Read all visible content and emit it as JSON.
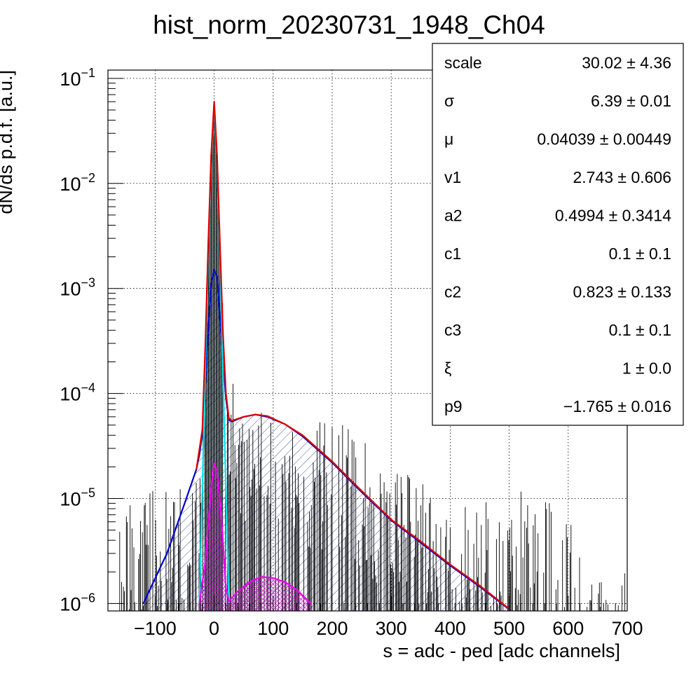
{
  "chart_data": {
    "type": "histogram",
    "title": "hist_norm_20230731_1948_Ch04",
    "xlabel": "s = adc - ped [adc channels]",
    "ylabel": "dN/ds p.d.f. [a.u.]",
    "xlim": [
      -180,
      700
    ],
    "ylim": [
      8.5e-07,
      0.12
    ],
    "yscale": "log",
    "grid": true,
    "x_ticks": [
      {
        "value": -100,
        "label": "−100"
      },
      {
        "value": 0,
        "label": "0"
      },
      {
        "value": 100,
        "label": "100"
      },
      {
        "value": 200,
        "label": "200"
      },
      {
        "value": 300,
        "label": "300"
      },
      {
        "value": 400,
        "label": "400"
      },
      {
        "value": 500,
        "label": "500"
      },
      {
        "value": 600,
        "label": "600"
      },
      {
        "value": 700,
        "label": "700"
      }
    ],
    "y_ticks": [
      {
        "value": 1e-06,
        "base": "10",
        "exp": "−6"
      },
      {
        "value": 1e-05,
        "base": "10",
        "exp": "−5"
      },
      {
        "value": 0.0001,
        "base": "10",
        "exp": "−4"
      },
      {
        "value": 0.001,
        "base": "10",
        "exp": "−3"
      },
      {
        "value": 0.01,
        "base": "10",
        "exp": "−2"
      },
      {
        "value": 0.1,
        "base": "10",
        "exp": "−1"
      }
    ],
    "stats_box": {
      "placement": "top-right",
      "rows": [
        {
          "name": "scale",
          "value": "30.02 ± 4.36"
        },
        {
          "name": "σ",
          "value": "6.39 ± 0.01"
        },
        {
          "name": "μ",
          "value": "0.04039 ± 0.00449"
        },
        {
          "name": "v1",
          "value": "2.743 ± 0.606"
        },
        {
          "name": "a2",
          "value": "0.4994 ± 0.3414"
        },
        {
          "name": "c1",
          "value": "0.1 ± 0.1"
        },
        {
          "name": "c2",
          "value": "0.823 ± 0.133"
        },
        {
          "name": "c3",
          "value": "0.1 ± 0.1"
        },
        {
          "name": "ξ",
          "value": "1 ± 0.0"
        },
        {
          "name": "p9",
          "value": "−1.765 ± 0.016"
        }
      ]
    },
    "series": [
      {
        "type": "curve",
        "color": "#0000cc",
        "fill": "hatched",
        "points": [
          [
            -120,
            1e-06
          ],
          [
            -80,
            3e-06
          ],
          [
            -50,
            9e-06
          ],
          [
            -30,
            1.9e-05
          ],
          [
            -25,
            2.6e-05
          ],
          [
            -20,
            4.2e-05
          ],
          [
            -15,
            0.00012
          ],
          [
            -10,
            0.0004
          ],
          [
            -5,
            0.0011
          ],
          [
            0,
            0.0015
          ],
          [
            5,
            0.0013
          ],
          [
            10,
            0.0005
          ],
          [
            15,
            0.00022
          ],
          [
            20,
            9e-05
          ],
          [
            25,
            5.6e-05
          ],
          [
            30,
            5.4e-05
          ],
          [
            50,
            6e-05
          ],
          [
            70,
            6.3e-05
          ],
          [
            90,
            6e-05
          ],
          [
            120,
            5.1e-05
          ],
          [
            150,
            3.9e-05
          ],
          [
            200,
            2.2e-05
          ],
          [
            250,
            1.15e-05
          ],
          [
            300,
            6.2e-06
          ],
          [
            350,
            3.8e-06
          ],
          [
            400,
            2.3e-06
          ],
          [
            450,
            1.45e-06
          ],
          [
            500,
            8.8e-07
          ]
        ]
      },
      {
        "type": "curve",
        "color": "#00e5ee",
        "fill": "hatched",
        "points": [
          [
            -25,
            1e-06
          ],
          [
            -20,
            1.2e-05
          ],
          [
            -15,
            0.00016
          ],
          [
            -10,
            0.0022
          ],
          [
            -5,
            0.018
          ],
          [
            0,
            0.054
          ],
          [
            5,
            0.017
          ],
          [
            10,
            0.002
          ],
          [
            15,
            0.00015
          ],
          [
            20,
            1.2e-05
          ],
          [
            25,
            1e-06
          ]
        ]
      },
      {
        "type": "curve",
        "color": "#ee00ee",
        "fill": "crosshatched",
        "points": [
          [
            -25,
            1e-06
          ],
          [
            -15,
            2.5e-06
          ],
          [
            -5,
            1.3e-05
          ],
          [
            0,
            2.2e-05
          ],
          [
            5,
            1.8e-05
          ],
          [
            12,
            7e-06
          ],
          [
            20,
            1.4e-06
          ],
          [
            25,
            1.05e-06
          ],
          [
            40,
            1.3e-06
          ],
          [
            60,
            1.6e-06
          ],
          [
            80,
            1.8e-06
          ],
          [
            100,
            1.75e-06
          ],
          [
            120,
            1.6e-06
          ],
          [
            140,
            1.35e-06
          ],
          [
            160,
            1.05e-06
          ],
          [
            165,
            1e-06
          ]
        ]
      },
      {
        "type": "curve",
        "color": "#dd0000",
        "points": [
          [
            -30,
            1.9e-05
          ],
          [
            -20,
            4.5e-05
          ],
          [
            -15,
            0.00028
          ],
          [
            -10,
            0.0026
          ],
          [
            -5,
            0.019
          ],
          [
            0,
            0.06
          ],
          [
            5,
            0.018
          ],
          [
            10,
            0.0025
          ],
          [
            15,
            0.00037
          ],
          [
            20,
            0.0001
          ],
          [
            25,
            5.8e-05
          ],
          [
            30,
            5.5e-05
          ],
          [
            50,
            6e-05
          ],
          [
            70,
            6.3e-05
          ],
          [
            90,
            6.1e-05
          ],
          [
            120,
            5.1e-05
          ],
          [
            150,
            4e-05
          ],
          [
            200,
            2.25e-05
          ],
          [
            250,
            1.18e-05
          ],
          [
            300,
            6.3e-06
          ],
          [
            350,
            3.9e-06
          ],
          [
            400,
            2.35e-06
          ],
          [
            450,
            1.48e-06
          ],
          [
            500,
            8.9e-07
          ]
        ]
      },
      {
        "type": "histogram",
        "color": "#000000",
        "binned_envelope": [
          [
            -160,
            1.2e-05
          ],
          [
            -100,
            1.2e-05
          ],
          [
            -60,
            1.2e-05
          ],
          [
            -40,
            1.8e-05
          ],
          [
            -30,
            3e-05
          ],
          [
            -25,
            6e-05
          ],
          [
            -20,
            0.00016
          ],
          [
            -15,
            0.0005
          ],
          [
            -10,
            0.003
          ],
          [
            -5,
            0.02
          ],
          [
            0,
            0.06
          ],
          [
            5,
            0.02
          ],
          [
            10,
            0.003
          ],
          [
            15,
            0.0006
          ],
          [
            20,
            0.00025
          ],
          [
            25,
            0.00015
          ],
          [
            40,
            0.00012
          ],
          [
            60,
            0.00011
          ],
          [
            80,
            0.00012
          ],
          [
            100,
            0.0001
          ],
          [
            130,
            9e-05
          ],
          [
            160,
            6.5e-05
          ],
          [
            200,
            6e-05
          ],
          [
            250,
            4e-05
          ],
          [
            300,
            2e-05
          ],
          [
            350,
            1.5e-05
          ],
          [
            400,
            1.2e-05
          ],
          [
            450,
            1.2e-05
          ],
          [
            500,
            1.2e-05
          ],
          [
            550,
            1.2e-05
          ],
          [
            600,
            6e-06
          ],
          [
            650,
            3e-06
          ],
          [
            700,
            2e-06
          ]
        ]
      }
    ]
  }
}
